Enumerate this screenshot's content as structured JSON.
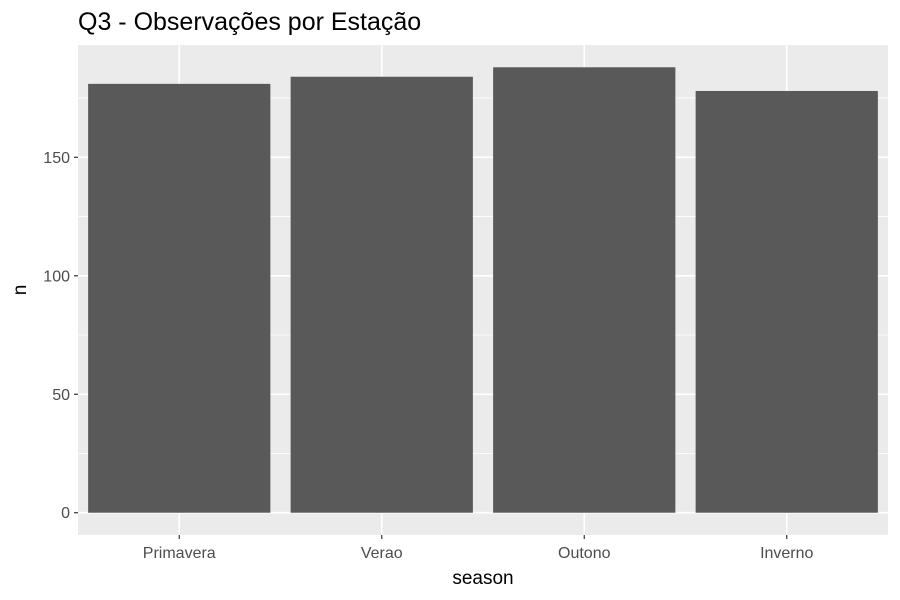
{
  "chart_data": {
    "type": "bar",
    "title": "Q3 - Observações por Estação",
    "xlabel": "season",
    "ylabel": "n",
    "categories": [
      "Primavera",
      "Verao",
      "Outono",
      "Inverno"
    ],
    "values": [
      181,
      184,
      188,
      178
    ],
    "y_ticks": [
      0,
      50,
      100,
      150
    ],
    "ylim": [
      -9.4,
      197.4
    ],
    "grid": true,
    "legend": "none",
    "colors": {
      "panel_background": "#ebebeb",
      "gridline": "#ffffff",
      "bar": "#595959",
      "tick_text": "#4d4d4d",
      "tick_mark": "#333333"
    }
  }
}
